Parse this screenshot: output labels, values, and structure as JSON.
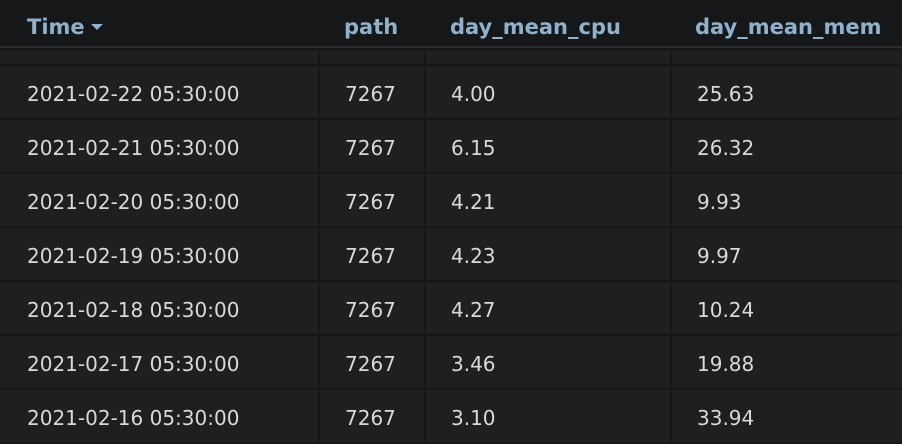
{
  "table": {
    "columns": [
      {
        "label": "Time",
        "sorted": "desc"
      },
      {
        "label": "path"
      },
      {
        "label": "day_mean_cpu"
      },
      {
        "label": "day_mean_mem"
      }
    ],
    "rows": [
      {
        "time": "2021-02-22 05:30:00",
        "path": "7267",
        "cpu": "4.00",
        "mem": "25.63"
      },
      {
        "time": "2021-02-21 05:30:00",
        "path": "7267",
        "cpu": "6.15",
        "mem": "26.32"
      },
      {
        "time": "2021-02-20 05:30:00",
        "path": "7267",
        "cpu": "4.21",
        "mem": "9.93"
      },
      {
        "time": "2021-02-19 05:30:00",
        "path": "7267",
        "cpu": "4.23",
        "mem": "9.97"
      },
      {
        "time": "2021-02-18 05:30:00",
        "path": "7267",
        "cpu": "4.27",
        "mem": "10.24"
      },
      {
        "time": "2021-02-17 05:30:00",
        "path": "7267",
        "cpu": "3.46",
        "mem": "19.88"
      },
      {
        "time": "2021-02-16 05:30:00",
        "path": "7267",
        "cpu": "3.10",
        "mem": "33.94"
      }
    ]
  },
  "colors": {
    "background": "#161719",
    "cell_background": "#1f1f21",
    "header_text": "#8fb1cc",
    "cell_text": "#d8d9da"
  },
  "icons": {
    "sort": "caret-down-icon"
  }
}
